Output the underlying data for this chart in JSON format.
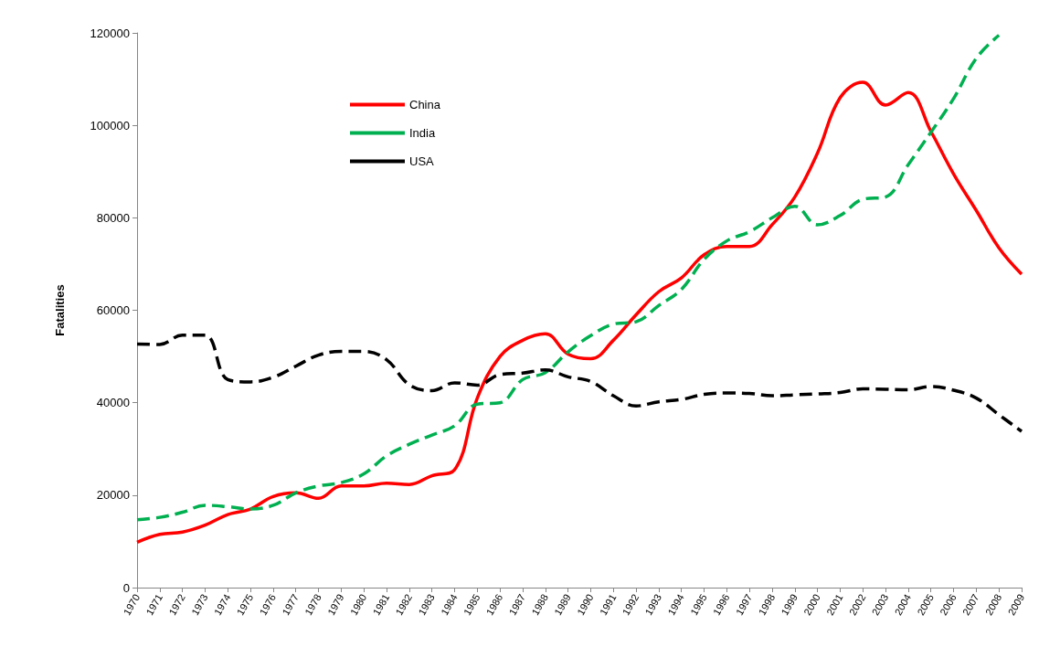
{
  "chart_data": {
    "type": "line",
    "ylabel": "Fatalities",
    "categories": [
      "1970",
      "1971",
      "1972",
      "1973",
      "1974",
      "1975",
      "1976",
      "1977",
      "1978",
      "1979",
      "1980",
      "1981",
      "1982",
      "1983",
      "1984",
      "1985",
      "1986",
      "1987",
      "1988",
      "1989",
      "1990",
      "1991",
      "1992",
      "1993",
      "1994",
      "1995",
      "1996",
      "1997",
      "1998",
      "1999",
      "2000",
      "2001",
      "2002",
      "2003",
      "2004",
      "2005",
      "2006",
      "2007",
      "2008",
      "2009"
    ],
    "series": [
      {
        "name": "China",
        "color": "#ff0000",
        "line_style": "solid",
        "values": [
          9800,
          11500,
          12000,
          13500,
          15800,
          17000,
          19700,
          20500,
          19300,
          22000,
          22000,
          22600,
          22300,
          24200,
          25500,
          41000,
          50000,
          53500,
          54900,
          50500,
          49500,
          53500,
          59000,
          64000,
          67000,
          72000,
          73800,
          73800,
          78500,
          84500,
          94000,
          106000,
          109300,
          104400,
          107100,
          98700,
          89500,
          81600,
          73500,
          67800
        ]
      },
      {
        "name": "India",
        "color": "#00b050",
        "line_style": "dashed",
        "values": [
          14700,
          15200,
          16300,
          17800,
          17500,
          17000,
          17800,
          20500,
          22000,
          22700,
          24600,
          28500,
          31000,
          33000,
          35000,
          39700,
          40000,
          45000,
          46500,
          51000,
          54500,
          57000,
          57500,
          61000,
          64500,
          71000,
          75000,
          77000,
          80000,
          82500,
          78500,
          80500,
          84000,
          84500,
          91500,
          98500,
          105800,
          114500,
          119500,
          null
        ]
      },
      {
        "name": "USA",
        "color": "#000000",
        "line_style": "dashed",
        "values": [
          52700,
          52600,
          54600,
          54600,
          45000,
          44500,
          45500,
          47900,
          50300,
          51100,
          51100,
          49300,
          43900,
          42600,
          44300,
          43800,
          46100,
          46400,
          47100,
          45600,
          44600,
          41500,
          39300,
          40200,
          40700,
          41800,
          42100,
          42000,
          41500,
          41700,
          41900,
          42200,
          43000,
          42900,
          42800,
          43500,
          42700,
          41000,
          37400,
          33800
        ]
      }
    ],
    "ylim": [
      0,
      120000
    ],
    "yticks": [
      0,
      20000,
      40000,
      60000,
      80000,
      100000,
      120000
    ],
    "grid": false,
    "legend": "top left",
    "marker": "none"
  }
}
